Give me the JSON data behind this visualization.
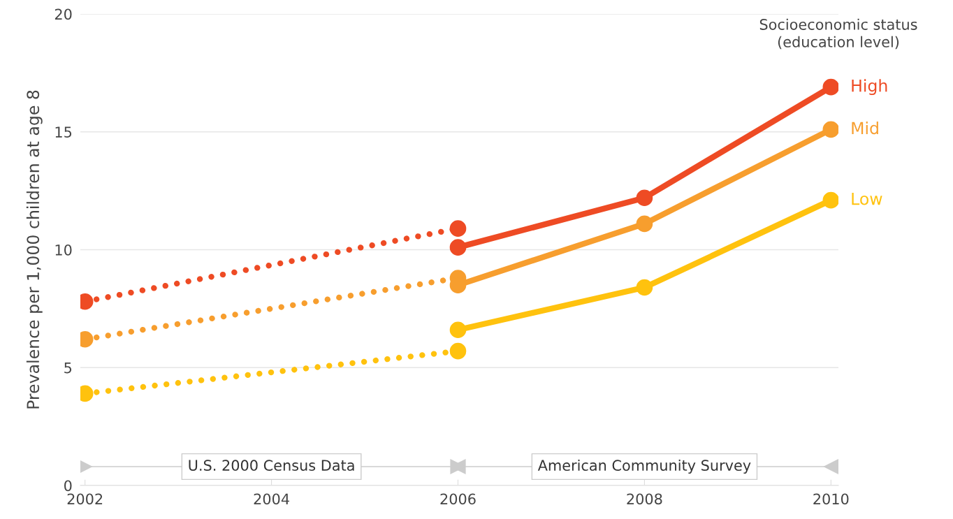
{
  "chart_data": {
    "type": "line",
    "ylabel": "Prevalence per 1,000 children at age 8",
    "legend_title": "Socioeconomic status\n(education level)",
    "xlim": [
      2001.95,
      2010.08
    ],
    "xticks": [
      2002,
      2004,
      2006,
      2008,
      2010
    ],
    "ylim": [
      0,
      20
    ],
    "yticks": [
      0,
      5,
      10,
      15,
      20
    ],
    "grid": "y",
    "marker": "circle",
    "series": [
      {
        "color": "#ee4b24",
        "x": [
          2002,
          2006
        ],
        "values": [
          7.8,
          10.9
        ],
        "line_style": "dotted"
      },
      {
        "color": "#f79e2e",
        "x": [
          2002,
          2006
        ],
        "values": [
          6.2,
          8.8
        ],
        "line_style": "dotted"
      },
      {
        "color": "#ffc20e",
        "x": [
          2002,
          2006
        ],
        "values": [
          3.9,
          5.7
        ],
        "line_style": "dotted"
      },
      {
        "name": "High",
        "color": "#ee4b24",
        "x": [
          2006,
          2008,
          2010
        ],
        "values": [
          10.1,
          12.2,
          16.9
        ],
        "line_style": "solid"
      },
      {
        "name": "Mid",
        "color": "#f79e2e",
        "x": [
          2006,
          2008,
          2010
        ],
        "values": [
          8.5,
          11.1,
          15.1
        ],
        "line_style": "solid"
      },
      {
        "name": "Low",
        "color": "#ffc20e",
        "x": [
          2006,
          2008,
          2010
        ],
        "values": [
          6.6,
          8.4,
          12.1
        ],
        "line_style": "solid"
      }
    ],
    "annotations": [
      "U.S. 2000 Census Data",
      "American Community Survey"
    ]
  }
}
